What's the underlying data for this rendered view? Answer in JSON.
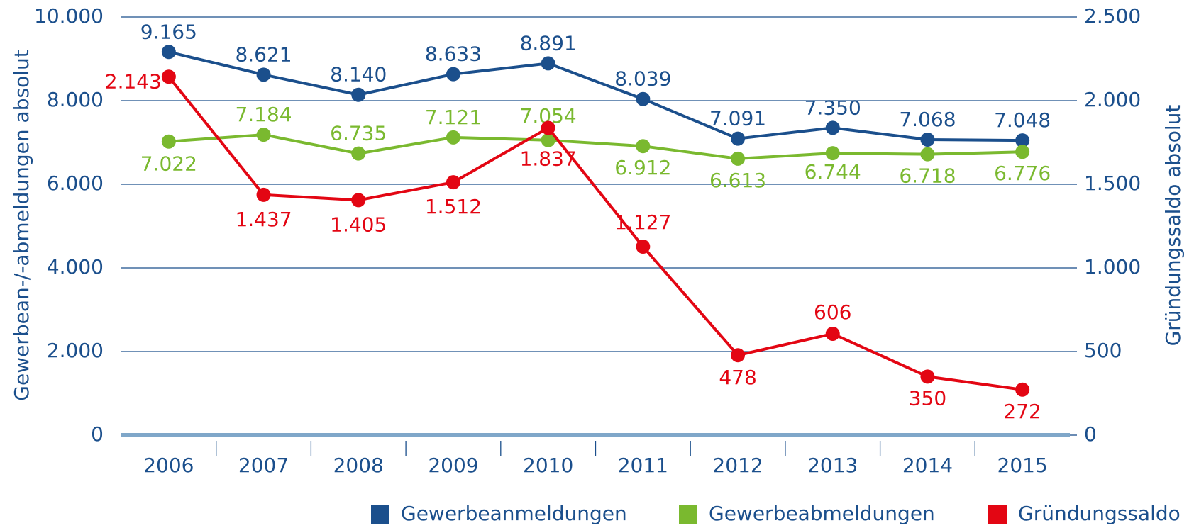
{
  "chart_data": {
    "type": "line",
    "y_label": "Gewerbean-/-abmeldungen absolut",
    "y2_label": "Gründungssaldo absolut",
    "categories": [
      "2006",
      "2007",
      "2008",
      "2009",
      "2010",
      "2011",
      "2012",
      "2013",
      "2014",
      "2015"
    ],
    "series": [
      {
        "name": "Gewerbeanmeldungen",
        "color": "#1b4f8c",
        "values": [
          9165,
          8621,
          8140,
          8633,
          8891,
          8039,
          7091,
          7350,
          7068,
          7048
        ],
        "value_labels": [
          "9.165",
          "8.621",
          "8.140",
          "8.633",
          "8.891",
          "8.039",
          "7.091",
          "7.350",
          "7.068",
          "7.048"
        ]
      },
      {
        "name": "Gewerbeabmeldungen",
        "color": "#7ab92f",
        "values": [
          7022,
          7184,
          6735,
          7121,
          7054,
          6912,
          6613,
          6744,
          6718,
          6776
        ],
        "value_labels": [
          "7.022",
          "7.184",
          "6.735",
          "7.121",
          "7.054",
          "6.912",
          "6.613",
          "6.744",
          "6.718",
          "6.776"
        ]
      },
      {
        "name": "Gründungssaldo",
        "color": "#e30613",
        "axis": "y2",
        "values": [
          2143,
          1437,
          1405,
          1512,
          1837,
          1127,
          478,
          606,
          350,
          272
        ],
        "value_labels": [
          "2.143",
          "1.437",
          "1.405",
          "1.512",
          "1.837",
          "1.127",
          "478",
          "606",
          "350",
          "272"
        ]
      }
    ],
    "ylim": [
      0,
      10000
    ],
    "yticks": [
      0,
      {
        "value": 2000,
        "label": "2.000"
      },
      {
        "value": 4000,
        "label": "4.000"
      },
      {
        "value": 6000,
        "label": "6.000"
      },
      {
        "value": 8000,
        "label": "8.000"
      },
      {
        "value": 10000,
        "label": "10.000"
      }
    ],
    "y2lim": [
      0,
      2500
    ],
    "y2ticks": [
      0,
      500,
      {
        "value": 1000,
        "label": "1.000"
      },
      {
        "value": 1500,
        "label": "1.500"
      },
      {
        "value": 2000,
        "label": "2.000"
      },
      {
        "value": 2500,
        "label": "2.500"
      }
    ],
    "grid": true,
    "legend": "bottom-right"
  }
}
